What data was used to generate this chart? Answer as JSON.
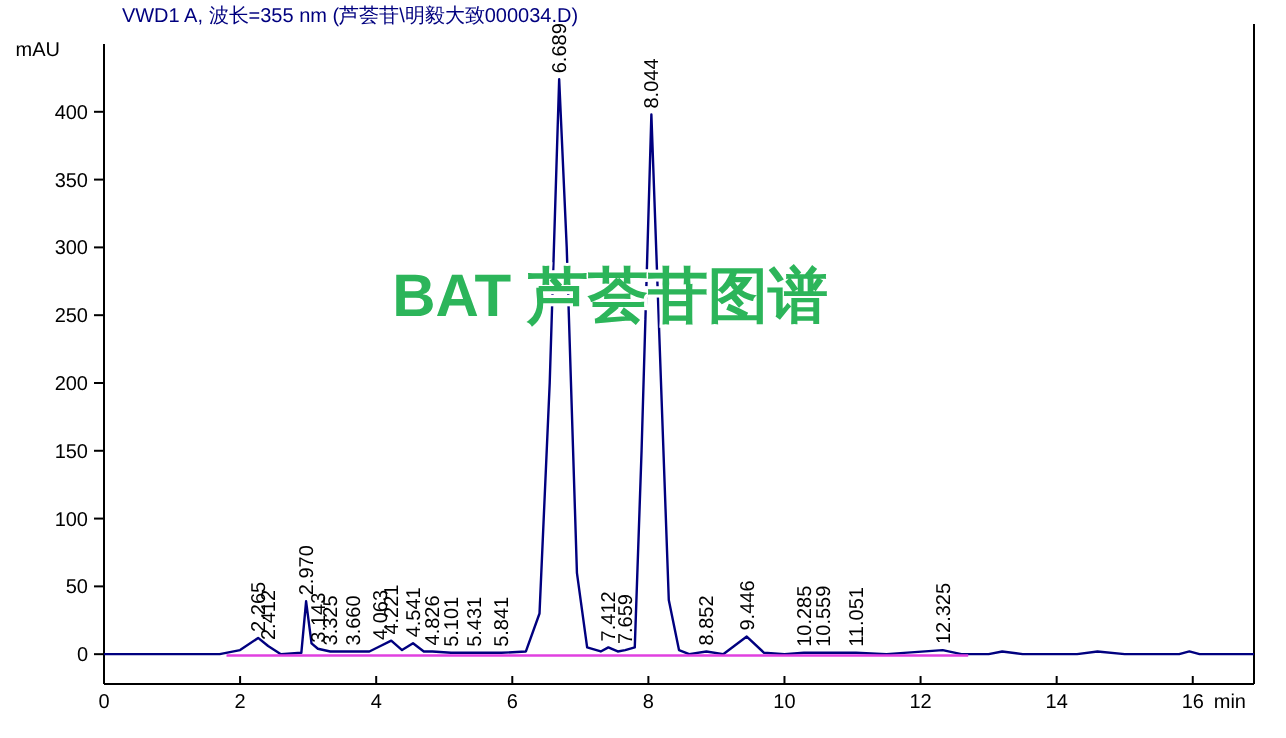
{
  "chart_data": {
    "type": "line",
    "title": "VWD1 A, 波长=355 nm (芦荟苷\\明毅大致000034.D)",
    "xlabel": "min",
    "ylabel": "mAU",
    "xlim": [
      0,
      16.9
    ],
    "ylim": [
      -22,
      450
    ],
    "xticks": [
      0,
      2,
      4,
      6,
      8,
      10,
      12,
      14,
      16
    ],
    "yticks": [
      0,
      50,
      100,
      150,
      200,
      250,
      300,
      350,
      400
    ],
    "grid": false,
    "marker": "none",
    "line_style": "solid",
    "series": [
      {
        "color": "#00007f",
        "x": [
          0,
          1.7,
          2.0,
          2.265,
          2.412,
          2.6,
          2.9,
          2.97,
          3.05,
          3.143,
          3.325,
          3.66,
          3.9,
          4.063,
          4.221,
          4.38,
          4.541,
          4.7,
          4.826,
          5.101,
          5.431,
          5.841,
          6.2,
          6.4,
          6.55,
          6.689,
          6.8,
          6.95,
          7.1,
          7.3,
          7.412,
          7.55,
          7.659,
          7.8,
          7.9,
          8.044,
          8.15,
          8.3,
          8.45,
          8.6,
          8.852,
          9.1,
          9.446,
          9.7,
          10.0,
          10.285,
          10.559,
          11.051,
          11.5,
          12.325,
          12.6,
          13.0,
          13.2,
          13.5,
          14.3,
          14.6,
          15.0,
          15.8,
          15.95,
          16.1,
          16.9
        ],
        "values": [
          0,
          0,
          3,
          12,
          6,
          0,
          1,
          39,
          8,
          4,
          2,
          2,
          2,
          6,
          10,
          3,
          8,
          2,
          2,
          1,
          1,
          1,
          2,
          30,
          200,
          424,
          300,
          60,
          5,
          2,
          5,
          2,
          3,
          5,
          150,
          398,
          250,
          40,
          3,
          0,
          2,
          0,
          13,
          1,
          0,
          1,
          1,
          1,
          0,
          3,
          0,
          0,
          2,
          0,
          0,
          2,
          0,
          0,
          2,
          0,
          0
        ]
      },
      {
        "color": "#e040e0",
        "x": [
          1.8,
          12.7
        ],
        "values": [
          -1,
          -1
        ]
      }
    ],
    "annotations": [
      "BAT 芦荟苷图谱",
      {
        "text": "2.265",
        "x": 2.265,
        "y": 12
      },
      {
        "text": "2.412",
        "x": 2.412,
        "y": 6
      },
      {
        "text": "2.970",
        "x": 2.97,
        "y": 39
      },
      {
        "text": "3.143",
        "x": 3.143,
        "y": 4
      },
      {
        "text": "3.325",
        "x": 3.325,
        "y": 2
      },
      {
        "text": "3.660",
        "x": 3.66,
        "y": 2
      },
      {
        "text": "4.063",
        "x": 4.063,
        "y": 6
      },
      {
        "text": "4.221",
        "x": 4.221,
        "y": 10
      },
      {
        "text": "4.541",
        "x": 4.541,
        "y": 8
      },
      {
        "text": "4.826",
        "x": 4.826,
        "y": 2
      },
      {
        "text": "5.101",
        "x": 5.101,
        "y": 1
      },
      {
        "text": "5.431",
        "x": 5.431,
        "y": 1
      },
      {
        "text": "5.841",
        "x": 5.841,
        "y": 1
      },
      {
        "text": "6.689",
        "x": 6.689,
        "y": 424
      },
      {
        "text": "7.412",
        "x": 7.412,
        "y": 5
      },
      {
        "text": "7.659",
        "x": 7.659,
        "y": 3
      },
      {
        "text": "8.044",
        "x": 8.044,
        "y": 398
      },
      {
        "text": "8.852",
        "x": 8.852,
        "y": 2
      },
      {
        "text": "9.446",
        "x": 9.446,
        "y": 13
      },
      {
        "text": "10.285",
        "x": 10.285,
        "y": 1
      },
      {
        "text": "10.559",
        "x": 10.559,
        "y": 1
      },
      {
        "text": "11.051",
        "x": 11.051,
        "y": 1
      },
      {
        "text": "12.325",
        "x": 12.325,
        "y": 3
      }
    ]
  }
}
